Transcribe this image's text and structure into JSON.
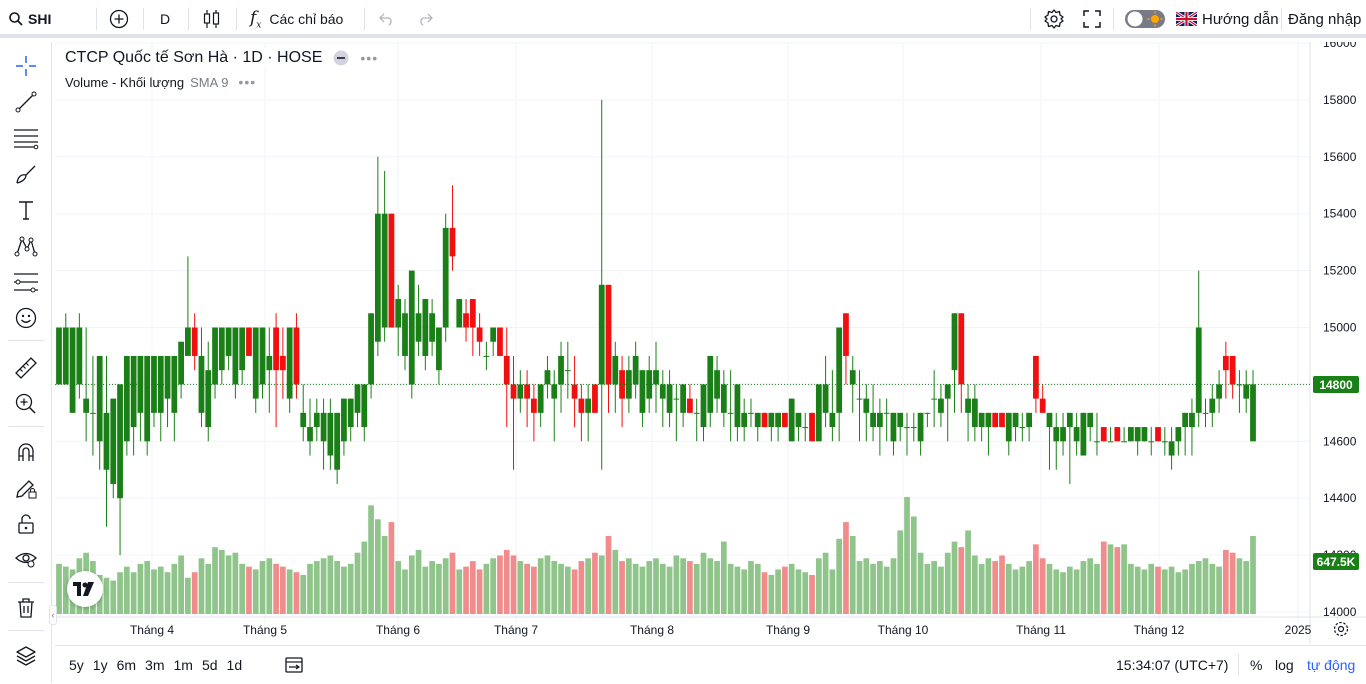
{
  "toolbar": {
    "symbol": "SHI",
    "interval": "D",
    "indicators_label": "Các chỉ báo",
    "guide_label": "Hướng dẫn",
    "login_label": "Đăng nhập"
  },
  "legend": {
    "title": "CTCP Quốc tế Sơn Hà · 1D · HOSE",
    "volume_label": "Volume - Khối lượng",
    "sma_label": "SMA 9"
  },
  "price_axis": {
    "ticks": [
      "16000",
      "15800",
      "15600",
      "15400",
      "15200",
      "15000",
      "14800",
      "14600",
      "14400",
      "14200",
      "14000"
    ],
    "current_price": "14800",
    "current_volume": "647.5K"
  },
  "time_axis": {
    "labels": [
      "Tháng 4",
      "Tháng 5",
      "Tháng 6",
      "Tháng 7",
      "Tháng 8",
      "Tháng 9",
      "Tháng 10",
      "Tháng 11",
      "Tháng 12",
      "2025"
    ]
  },
  "bottombar": {
    "ranges": [
      "5y",
      "1y",
      "6m",
      "3m",
      "1m",
      "5d",
      "1d"
    ],
    "clock": "15:34:07 (UTC+7)",
    "percent_label": "%",
    "log_label": "log",
    "auto_label": "tự động"
  },
  "colors": {
    "up": "#1a7f16",
    "down": "#f20f0f",
    "volume_up": "#8fc48a",
    "volume_down": "#f08c8c",
    "accent": "#2962ff"
  },
  "chart_data": {
    "type": "candlestick",
    "ylim": [
      14000,
      16000
    ],
    "period": "2024-03-26 to 2024-12-31, daily",
    "ohlc_note": "open/high/low/close in VND; volume in shares",
    "bars": [
      [
        14800,
        15000,
        14800,
        15000,
        180000
      ],
      [
        14800,
        15050,
        14800,
        15000,
        170000
      ],
      [
        14700,
        15000,
        14700,
        15000,
        160000
      ],
      [
        14800,
        15050,
        14750,
        15000,
        200000
      ],
      [
        14700,
        15000,
        14600,
        14750,
        220000
      ],
      [
        14700,
        14900,
        14550,
        14700,
        190000
      ],
      [
        14600,
        14900,
        14500,
        14900,
        140000
      ],
      [
        14500,
        14900,
        14300,
        14700,
        130000
      ],
      [
        14450,
        14750,
        14400,
        14750,
        120000
      ],
      [
        14400,
        14800,
        14200,
        14800,
        150000
      ],
      [
        14600,
        14900,
        14550,
        14900,
        170000
      ],
      [
        14650,
        14900,
        14550,
        14900,
        150000
      ],
      [
        14700,
        14900,
        14600,
        14900,
        180000
      ],
      [
        14600,
        14900,
        14550,
        14900,
        190000
      ],
      [
        14700,
        14900,
        14650,
        14900,
        160000
      ],
      [
        14700,
        14900,
        14600,
        14900,
        170000
      ],
      [
        14750,
        14900,
        14650,
        14900,
        150000
      ],
      [
        14700,
        14900,
        14600,
        14900,
        180000
      ],
      [
        14800,
        14950,
        14750,
        14950,
        210000
      ],
      [
        14900,
        15250,
        14900,
        15000,
        130000
      ],
      [
        15000,
        15050,
        14850,
        14900,
        150000
      ],
      [
        14700,
        15000,
        14650,
        14900,
        200000
      ],
      [
        14650,
        14950,
        14600,
        14850,
        180000
      ],
      [
        14800,
        15000,
        14750,
        15000,
        240000
      ],
      [
        14850,
        15000,
        14800,
        15000,
        230000
      ],
      [
        14900,
        15000,
        14850,
        15000,
        210000
      ],
      [
        14800,
        15000,
        14750,
        15000,
        220000
      ],
      [
        14850,
        15000,
        14800,
        15000,
        180000
      ],
      [
        15000,
        15000,
        14900,
        14900,
        170000
      ],
      [
        14750,
        15000,
        14700,
        15000,
        160000
      ],
      [
        14800,
        15000,
        14750,
        15000,
        190000
      ],
      [
        14850,
        15000,
        14700,
        14900,
        200000
      ],
      [
        15000,
        15050,
        14650,
        14850,
        180000
      ],
      [
        14900,
        15000,
        14750,
        14850,
        170000
      ],
      [
        14750,
        15000,
        14700,
        15000,
        160000
      ],
      [
        15000,
        15050,
        14750,
        14800,
        150000
      ],
      [
        14650,
        14800,
        14600,
        14700,
        140000
      ],
      [
        14600,
        14750,
        14550,
        14650,
        180000
      ],
      [
        14650,
        14750,
        14600,
        14700,
        190000
      ],
      [
        14600,
        14750,
        14500,
        14700,
        200000
      ],
      [
        14550,
        14750,
        14500,
        14700,
        210000
      ],
      [
        14500,
        14700,
        14450,
        14700,
        190000
      ],
      [
        14600,
        14750,
        14550,
        14750,
        170000
      ],
      [
        14650,
        14750,
        14600,
        14750,
        180000
      ],
      [
        14700,
        14800,
        14650,
        14800,
        220000
      ],
      [
        14650,
        14800,
        14600,
        14800,
        260000
      ],
      [
        14800,
        15050,
        14750,
        15050,
        390000
      ],
      [
        14950,
        15600,
        14900,
        15400,
        340000
      ],
      [
        15000,
        15550,
        14950,
        15400,
        280000
      ],
      [
        15400,
        15400,
        15000,
        15000,
        330000
      ],
      [
        15000,
        15150,
        14900,
        15100,
        190000
      ],
      [
        14900,
        15100,
        14850,
        15050,
        160000
      ],
      [
        14800,
        15200,
        14750,
        15200,
        210000
      ],
      [
        14950,
        15150,
        14900,
        15050,
        230000
      ],
      [
        14900,
        15100,
        14850,
        15100,
        170000
      ],
      [
        14950,
        15100,
        14900,
        15050,
        190000
      ],
      [
        14850,
        15000,
        14800,
        15000,
        180000
      ],
      [
        15000,
        15400,
        14950,
        15350,
        200000
      ],
      [
        15350,
        15500,
        15200,
        15250,
        220000
      ],
      [
        15000,
        15100,
        15000,
        15100,
        160000
      ],
      [
        15050,
        15100,
        14950,
        15000,
        170000
      ],
      [
        15100,
        15100,
        14900,
        15000,
        190000
      ],
      [
        15000,
        15050,
        14900,
        14950,
        160000
      ],
      [
        14900,
        14950,
        14850,
        14900,
        180000
      ],
      [
        14950,
        15000,
        14900,
        15000,
        200000
      ],
      [
        15000,
        15000,
        14900,
        14900,
        210000
      ],
      [
        14900,
        15000,
        14650,
        14800,
        230000
      ],
      [
        14800,
        14900,
        14500,
        14750,
        210000
      ],
      [
        14750,
        14850,
        14700,
        14800,
        190000
      ],
      [
        14800,
        14850,
        14650,
        14750,
        180000
      ],
      [
        14750,
        14800,
        14600,
        14700,
        170000
      ],
      [
        14700,
        14800,
        14650,
        14800,
        200000
      ],
      [
        14800,
        14900,
        14750,
        14850,
        210000
      ],
      [
        14750,
        14850,
        14600,
        14800,
        190000
      ],
      [
        14800,
        14950,
        14700,
        14900,
        180000
      ],
      [
        14850,
        14950,
        14750,
        14850,
        170000
      ],
      [
        14800,
        14900,
        14650,
        14750,
        160000
      ],
      [
        14750,
        14800,
        14600,
        14700,
        190000
      ],
      [
        14700,
        14800,
        14600,
        14750,
        200000
      ],
      [
        14800,
        14800,
        14700,
        14700,
        220000
      ],
      [
        14800,
        15800,
        14500,
        15150,
        210000
      ],
      [
        15150,
        15150,
        14700,
        14800,
        280000
      ],
      [
        14800,
        14950,
        14700,
        14900,
        230000
      ],
      [
        14850,
        14900,
        14650,
        14750,
        190000
      ],
      [
        14750,
        14900,
        14700,
        14850,
        200000
      ],
      [
        14800,
        14950,
        14750,
        14900,
        180000
      ],
      [
        14700,
        14850,
        14650,
        14850,
        170000
      ],
      [
        14750,
        14900,
        14700,
        14850,
        190000
      ],
      [
        14800,
        14950,
        14700,
        14850,
        200000
      ],
      [
        14750,
        14850,
        14650,
        14800,
        180000
      ],
      [
        14700,
        14850,
        14650,
        14800,
        170000
      ],
      [
        14750,
        14800,
        14600,
        14750,
        210000
      ],
      [
        14700,
        14800,
        14650,
        14800,
        200000
      ],
      [
        14750,
        14800,
        14700,
        14700,
        190000
      ],
      [
        14700,
        14750,
        14600,
        14700,
        180000
      ],
      [
        14650,
        14800,
        14600,
        14800,
        220000
      ],
      [
        14700,
        14900,
        14650,
        14900,
        200000
      ],
      [
        14750,
        14900,
        14700,
        14850,
        190000
      ],
      [
        14700,
        14850,
        14650,
        14800,
        260000
      ],
      [
        14700,
        14850,
        14600,
        14700,
        180000
      ],
      [
        14650,
        14800,
        14600,
        14800,
        170000
      ],
      [
        14650,
        14750,
        14600,
        14700,
        160000
      ],
      [
        14700,
        14750,
        14650,
        14700,
        190000
      ],
      [
        14650,
        14700,
        14600,
        14700,
        180000
      ],
      [
        14700,
        14700,
        14650,
        14650,
        150000
      ],
      [
        14650,
        14700,
        14600,
        14700,
        140000
      ],
      [
        14650,
        14700,
        14600,
        14700,
        160000
      ],
      [
        14700,
        14700,
        14650,
        14650,
        170000
      ],
      [
        14600,
        14750,
        14600,
        14750,
        180000
      ],
      [
        14650,
        14700,
        14600,
        14700,
        160000
      ],
      [
        14650,
        14700,
        14600,
        14650,
        150000
      ],
      [
        14700,
        14700,
        14600,
        14600,
        140000
      ],
      [
        14600,
        14800,
        14600,
        14800,
        200000
      ],
      [
        14700,
        14900,
        14650,
        14800,
        220000
      ],
      [
        14650,
        14850,
        14600,
        14700,
        160000
      ],
      [
        14700,
        15000,
        14600,
        15000,
        270000
      ],
      [
        15050,
        15050,
        14800,
        14900,
        330000
      ],
      [
        14800,
        14900,
        14700,
        14850,
        280000
      ],
      [
        14750,
        14850,
        14600,
        14750,
        190000
      ],
      [
        14700,
        14800,
        14600,
        14750,
        200000
      ],
      [
        14650,
        14800,
        14600,
        14700,
        180000
      ],
      [
        14650,
        14750,
        14550,
        14700,
        190000
      ],
      [
        14700,
        14750,
        14600,
        14700,
        170000
      ],
      [
        14600,
        14700,
        14550,
        14700,
        200000
      ],
      [
        14650,
        14700,
        14600,
        14700,
        300000
      ],
      [
        14650,
        14700,
        14550,
        14650,
        420000
      ],
      [
        14650,
        14700,
        14600,
        14650,
        350000
      ],
      [
        14600,
        14700,
        14550,
        14700,
        220000
      ],
      [
        14700,
        14700,
        14650,
        14700,
        180000
      ],
      [
        14750,
        14850,
        14650,
        14750,
        190000
      ],
      [
        14700,
        14800,
        14650,
        14750,
        170000
      ],
      [
        14750,
        14800,
        14600,
        14800,
        220000
      ],
      [
        14850,
        15050,
        14700,
        15050,
        260000
      ],
      [
        15050,
        15050,
        14700,
        14800,
        240000
      ],
      [
        14700,
        14800,
        14600,
        14750,
        300000
      ],
      [
        14650,
        14800,
        14600,
        14750,
        210000
      ],
      [
        14650,
        14700,
        14600,
        14700,
        180000
      ],
      [
        14650,
        14700,
        14550,
        14700,
        200000
      ],
      [
        14700,
        14700,
        14650,
        14650,
        190000
      ],
      [
        14700,
        14700,
        14650,
        14650,
        210000
      ],
      [
        14600,
        14700,
        14550,
        14700,
        180000
      ],
      [
        14650,
        14700,
        14600,
        14700,
        160000
      ],
      [
        14650,
        14700,
        14600,
        14650,
        170000
      ],
      [
        14650,
        14700,
        14600,
        14700,
        190000
      ],
      [
        14900,
        14900,
        14700,
        14750,
        250000
      ],
      [
        14750,
        14800,
        14700,
        14700,
        200000
      ],
      [
        14650,
        14700,
        14500,
        14700,
        180000
      ],
      [
        14600,
        14700,
        14500,
        14650,
        160000
      ],
      [
        14600,
        14700,
        14550,
        14650,
        150000
      ],
      [
        14650,
        14700,
        14450,
        14700,
        170000
      ],
      [
        14600,
        14700,
        14550,
        14650,
        160000
      ],
      [
        14550,
        14700,
        14550,
        14700,
        190000
      ],
      [
        14650,
        14700,
        14600,
        14700,
        200000
      ],
      [
        14600,
        14700,
        14550,
        14600,
        180000
      ],
      [
        14650,
        14650,
        14600,
        14600,
        260000
      ],
      [
        14600,
        14650,
        14600,
        14600,
        250000
      ],
      [
        14650,
        14650,
        14600,
        14600,
        240000
      ],
      [
        14600,
        14650,
        14600,
        14600,
        250000
      ],
      [
        14600,
        14650,
        14600,
        14650,
        180000
      ],
      [
        14600,
        14650,
        14550,
        14650,
        170000
      ],
      [
        14600,
        14650,
        14600,
        14650,
        160000
      ],
      [
        14600,
        14650,
        14550,
        14600,
        180000
      ],
      [
        14650,
        14650,
        14600,
        14600,
        170000
      ],
      [
        14600,
        14650,
        14550,
        14600,
        160000
      ],
      [
        14550,
        14650,
        14500,
        14600,
        170000
      ],
      [
        14600,
        14650,
        14550,
        14650,
        150000
      ],
      [
        14650,
        14700,
        14550,
        14700,
        160000
      ],
      [
        14650,
        14750,
        14550,
        14700,
        180000
      ],
      [
        14700,
        15200,
        14650,
        15000,
        190000
      ],
      [
        14700,
        14750,
        14650,
        14700,
        200000
      ],
      [
        14700,
        14800,
        14650,
        14750,
        180000
      ],
      [
        14750,
        14850,
        14700,
        14800,
        170000
      ],
      [
        14900,
        14950,
        14750,
        14850,
        230000
      ],
      [
        14900,
        14900,
        14750,
        14800,
        220000
      ],
      [
        14800,
        14850,
        14700,
        14800,
        200000
      ],
      [
        14750,
        14850,
        14700,
        14800,
        190000
      ],
      [
        14600,
        14850,
        14600,
        14800,
        280000
      ]
    ]
  }
}
